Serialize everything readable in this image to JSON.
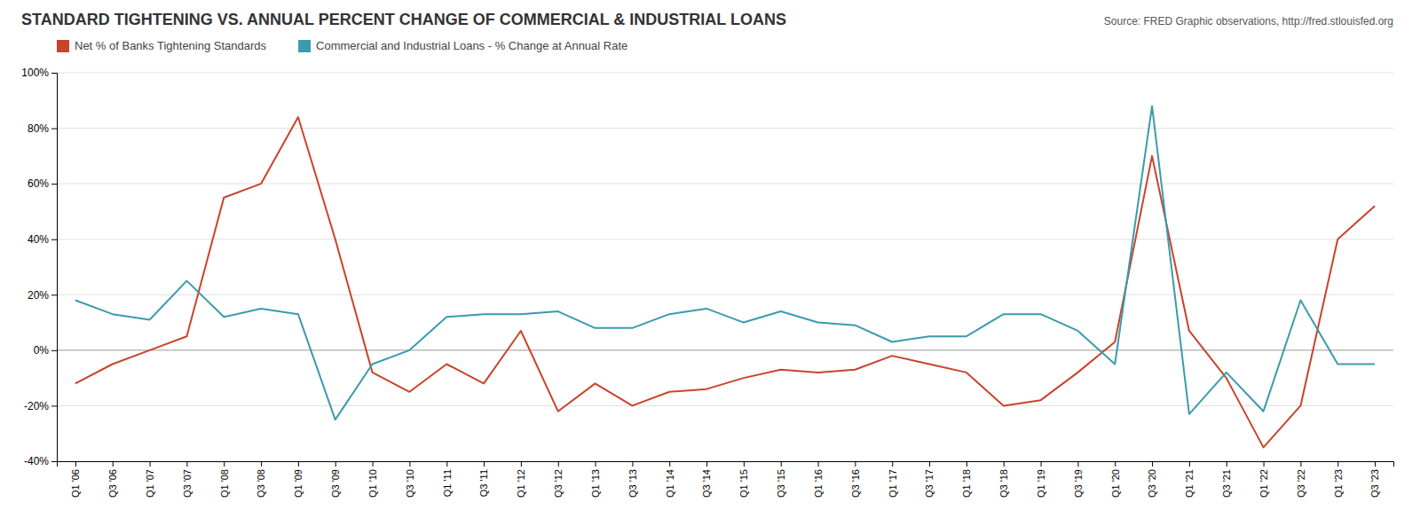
{
  "chart_data": {
    "type": "line",
    "title": "STANDARD TIGHTENING VS. ANNUAL PERCENT CHANGE OF COMMERCIAL & INDUSTRIAL LOANS",
    "categories": [
      "Q1 '06",
      "Q3 '06",
      "Q1 '07",
      "Q3 '07",
      "Q1 '08",
      "Q3 '08",
      "Q1 '09",
      "Q3 '09",
      "Q1 '10",
      "Q3 '10",
      "Q1 '11",
      "Q3 '11",
      "Q1 '12",
      "Q3 '12",
      "Q1 '13",
      "Q3 '13",
      "Q1 '14",
      "Q3 '14",
      "Q1 '15",
      "Q3 '15",
      "Q1 '16",
      "Q3 '16",
      "Q1 '17",
      "Q3 '17",
      "Q1 '18",
      "Q3 '18",
      "Q1 '19",
      "Q3 '19",
      "Q1 '20",
      "Q3 '20",
      "Q1 '21",
      "Q3 '21",
      "Q1 '22",
      "Q3 '22",
      "Q1 '23",
      "Q3 '23"
    ],
    "series": [
      {
        "name": "Net % of Banks Tightening Standards",
        "color": "#C8442A",
        "values": [
          -12,
          -5,
          0,
          5,
          55,
          60,
          84,
          40,
          -8,
          -15,
          -5,
          -12,
          7,
          -22,
          -12,
          -20,
          -15,
          -14,
          -10,
          -7,
          -8,
          -7,
          -2,
          -5,
          -8,
          -20,
          -18,
          -8,
          3,
          70,
          7,
          -10,
          -35,
          -20,
          40,
          52
        ]
      },
      {
        "name": "Commercial and Industrial Loans - % Change at Annual Rate",
        "color": "#3A9BAD",
        "values": [
          18,
          13,
          11,
          25,
          12,
          15,
          13,
          -25,
          -5,
          0,
          12,
          13,
          13,
          14,
          8,
          8,
          13,
          15,
          10,
          14,
          10,
          9,
          3,
          5,
          5,
          13,
          13,
          7,
          -5,
          88,
          -23,
          -8,
          -22,
          18,
          -5,
          -5
        ]
      }
    ],
    "annotations": [
      "Source: FRED Graphic observations, http://fred.stlouisfed.org"
    ],
    "ylim": [
      -40,
      100
    ],
    "yticks": [
      {
        "value": -40,
        "label": "-40%"
      },
      {
        "value": -20,
        "label": "-20%"
      },
      {
        "value": 0,
        "label": "0%"
      },
      {
        "value": 20,
        "label": "20%"
      },
      {
        "value": 40,
        "label": "40%"
      },
      {
        "value": 60,
        "label": "60%"
      },
      {
        "value": 80,
        "label": "80%"
      },
      {
        "value": 100,
        "label": "100%"
      }
    ],
    "grid": true,
    "legend": "top-left"
  }
}
